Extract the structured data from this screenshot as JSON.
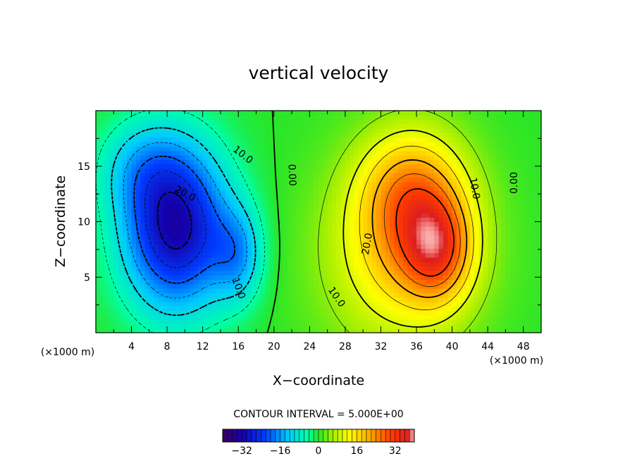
{
  "chart_data": {
    "type": "heatmap",
    "title": "vertical velocity",
    "xlabel": "X−coordinate",
    "ylabel": "Z−coordinate",
    "x_unit": "(×1000 m)",
    "xlim": [
      0,
      50
    ],
    "ylim": [
      0,
      20
    ],
    "x_ticks": [
      "4",
      "8",
      "12",
      "16",
      "20",
      "24",
      "28",
      "32",
      "36",
      "40",
      "44",
      "48"
    ],
    "y_ticks": [
      "5",
      "10",
      "15"
    ],
    "contour_interval_label": "CONTOUR INTERVAL = 5.000E+00",
    "contour_interval": 5,
    "contour_labels": [
      "10.0",
      "20.0",
      "10.0",
      "0.00",
      "20.0",
      "10.0",
      "10.0",
      "0.00"
    ],
    "colorbar": {
      "min": -40,
      "max": 40,
      "ticks": [
        "−32",
        "−16",
        "0",
        "16",
        "32"
      ]
    },
    "fields": [
      {
        "cx": 9,
        "cy": 9.5,
        "sx": 4.2,
        "sy": 5.2,
        "amp": -32
      },
      {
        "cx": 16,
        "cy": 7,
        "sx": 2.0,
        "sy": 3.0,
        "amp": -12
      },
      {
        "cx": 5,
        "cy": 15,
        "sx": 3.5,
        "sy": 3.0,
        "amp": -8
      },
      {
        "cx": 38.5,
        "cy": 7.5,
        "sx": 2.6,
        "sy": 3.2,
        "amp": 17
      },
      {
        "cx": 36,
        "cy": 10.5,
        "sx": 4.2,
        "sy": 5.0,
        "amp": 15
      },
      {
        "cx": 34,
        "cy": 7,
        "sx": 6.5,
        "sy": 6.5,
        "amp": 12
      },
      {
        "cx": 35,
        "cy": 13.5,
        "sx": 4.0,
        "sy": 3.5,
        "amp": 7
      }
    ]
  }
}
